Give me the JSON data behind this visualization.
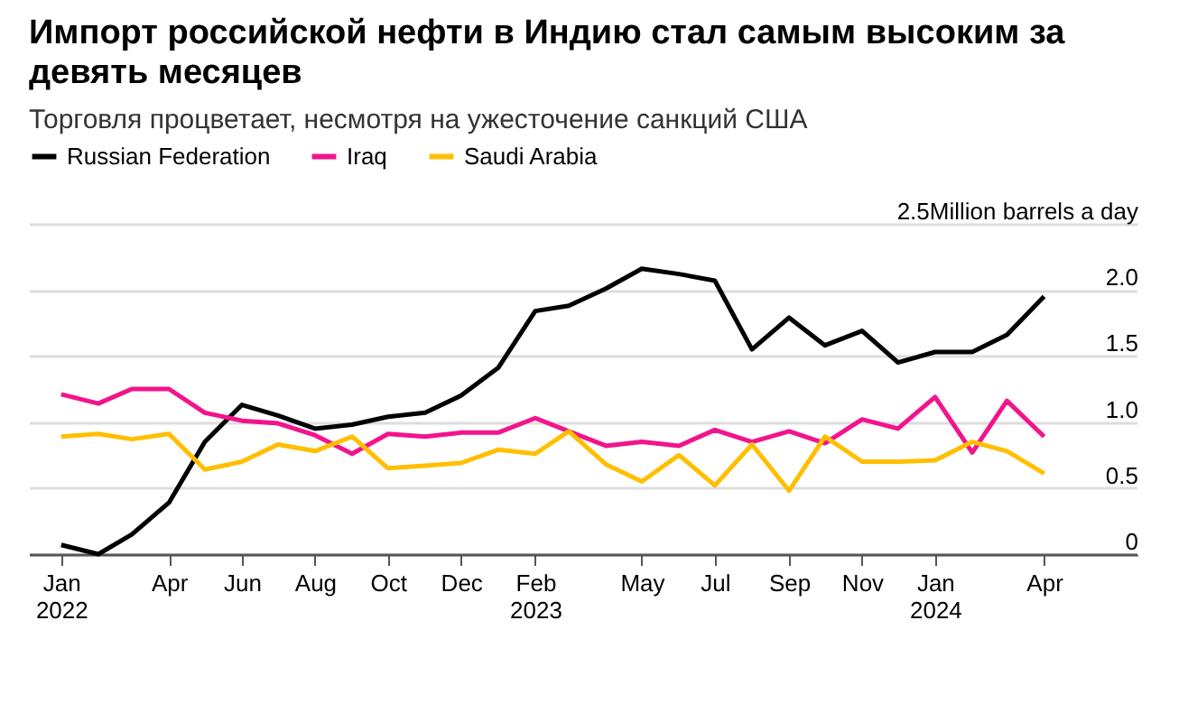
{
  "chart_data": {
    "type": "line",
    "title": "Импорт российской нефти в Индию стал самым высоким за девять месяцев",
    "subtitle": "Торговля процветает, несмотря на ужесточение санкций США",
    "x": [
      "2022-01",
      "2022-02",
      "2022-03",
      "2022-04",
      "2022-05",
      "2022-06",
      "2022-07",
      "2022-08",
      "2022-09",
      "2022-10",
      "2022-11",
      "2022-12",
      "2023-01",
      "2023-02",
      "2023-03",
      "2023-04",
      "2023-05",
      "2023-06",
      "2023-07",
      "2023-08",
      "2023-09",
      "2023-10",
      "2023-11",
      "2023-12",
      "2024-01",
      "2024-02",
      "2024-03",
      "2024-04"
    ],
    "series": [
      {
        "name": "Russian Federation",
        "color": "#000000",
        "values": [
          0.07,
          0,
          0.15,
          0.39,
          0.85,
          1.13,
          1.05,
          0.95,
          0.98,
          1.04,
          1.07,
          1.2,
          1.41,
          1.84,
          1.88,
          2.01,
          2.16,
          2.12,
          2.07,
          1.55,
          1.79,
          1.58,
          1.69,
          1.45,
          1.53,
          1.53,
          1.66,
          1.95
        ]
      },
      {
        "name": "Iraq",
        "color": "#f2148c",
        "values": [
          1.21,
          1.14,
          1.25,
          1.25,
          1.07,
          1.01,
          0.99,
          0.9,
          0.76,
          0.91,
          0.89,
          0.92,
          0.92,
          1.03,
          0.93,
          0.82,
          0.85,
          0.82,
          0.94,
          0.85,
          0.93,
          0.84,
          1.02,
          0.95,
          1.19,
          0.77,
          1.16,
          0.89
        ]
      },
      {
        "name": "Saudi Arabia",
        "color": "#ffbf00",
        "values": [
          0.89,
          0.91,
          0.87,
          0.91,
          0.64,
          0.7,
          0.83,
          0.78,
          0.89,
          0.65,
          0.67,
          0.69,
          0.79,
          0.76,
          0.93,
          0.68,
          0.55,
          0.75,
          0.52,
          0.83,
          0.48,
          0.89,
          0.7,
          0.7,
          0.71,
          0.85,
          0.78,
          0.61
        ]
      }
    ],
    "xlim": [
      "2021-12-05",
      "2024-06-18"
    ],
    "xticks": [
      {
        "value": "2022-01",
        "label": "Jan\n2022"
      },
      {
        "value": "2022-04",
        "label": "Apr"
      },
      {
        "value": "2022-06",
        "label": "Jun"
      },
      {
        "value": "2022-08",
        "label": "Aug"
      },
      {
        "value": "2022-10",
        "label": "Oct"
      },
      {
        "value": "2022-12",
        "label": "Dec"
      },
      {
        "value": "2023-02",
        "label": "Feb\n2023"
      },
      {
        "value": "2023-05",
        "label": "May"
      },
      {
        "value": "2023-07",
        "label": "Jul"
      },
      {
        "value": "2023-09",
        "label": "Sep"
      },
      {
        "value": "2023-11",
        "label": "Nov"
      },
      {
        "value": "2024-01",
        "label": "Jan\n2024"
      },
      {
        "value": "2024-04",
        "label": "Apr"
      }
    ],
    "ylim": [
      0,
      2.5
    ],
    "yticks": [
      0,
      0.5,
      {
        "value": 1,
        "label": "1.0"
      },
      1.5,
      {
        "value": 2,
        "label": "2.0"
      },
      {
        "value": 2.5,
        "label": "2.5Million barrels a day"
      }
    ],
    "grid": "y",
    "legend": "top left",
    "line_style": "solid",
    "marker": "none"
  }
}
